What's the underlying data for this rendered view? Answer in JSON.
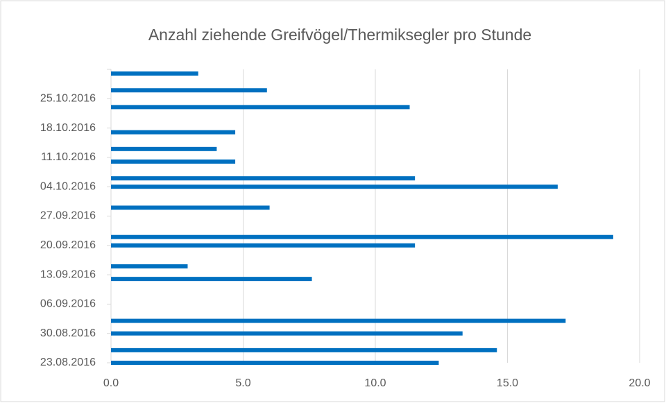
{
  "chart_data": {
    "type": "bar",
    "orientation": "horizontal",
    "title": "Anzahl ziehende Greifvögel/Thermiksegler pro Stunde",
    "x": [
      "23.08.2016",
      "26.08.2016",
      "30.08.2016",
      "02.09.2016",
      "12.09.2016",
      "15.09.2016",
      "20.09.2016",
      "22.09.2016",
      "29.09.2016",
      "04.10.2016",
      "06.10.2016",
      "10.10.2016",
      "13.10.2016",
      "17.10.2016",
      "23.10.2016",
      "27.10.2016",
      "31.10.2016"
    ],
    "values": [
      12.4,
      14.6,
      13.3,
      17.2,
      7.6,
      2.9,
      11.5,
      19.0,
      6.0,
      16.9,
      11.5,
      4.7,
      4.0,
      4.7,
      11.3,
      5.9,
      3.3
    ],
    "color": "#0070c0",
    "ylim": [
      "23.08.2016",
      "01.11.2016"
    ],
    "yticks": [
      "23.08.2016",
      "30.08.2016",
      "06.09.2016",
      "13.09.2016",
      "20.09.2016",
      "27.09.2016",
      "04.10.2016",
      "11.10.2016",
      "18.10.2016",
      "25.10.2016"
    ],
    "xlim": [
      0,
      20
    ],
    "xticks": [
      {
        "value": 0,
        "label": "0.0"
      },
      {
        "value": 5,
        "label": "5.0"
      },
      {
        "value": 10,
        "label": "10.0"
      },
      {
        "value": 15,
        "label": "15.0"
      },
      {
        "value": 20,
        "label": "20.0"
      }
    ],
    "grid": true
  }
}
